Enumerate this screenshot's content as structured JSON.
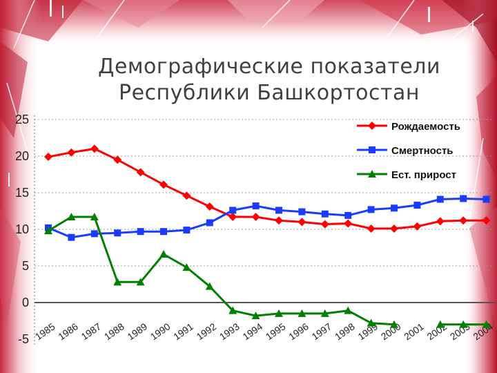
{
  "title": {
    "line1": "Демографические показатели",
    "line2": "Республики Башкортостан"
  },
  "colors": {
    "birth": "#ff0000",
    "death": "#1a3cff",
    "growth": "#008000",
    "frame_pink": "#f0a0b0",
    "frame_red": "#c0182c"
  },
  "chart_data": {
    "type": "line",
    "title": "Демографические показатели Республики Башкортостан",
    "xlabel": "",
    "ylabel": "",
    "ylim": [
      -5,
      25
    ],
    "yticks": [
      "25",
      "20",
      "15",
      "10",
      "5",
      "0",
      "-5"
    ],
    "ytick_values": [
      25,
      20,
      15,
      10,
      5,
      0,
      -5
    ],
    "categories": [
      "1985",
      "1986",
      "1987",
      "1988",
      "1989",
      "1990",
      "1991",
      "1992",
      "1993",
      "1994",
      "1995",
      "1996",
      "1997",
      "1998",
      "1999",
      "2000",
      "2001",
      "2002",
      "2003",
      "2004"
    ],
    "grid": true,
    "legend_position": "top-right",
    "series": [
      {
        "name": "Рождаемость",
        "color": "#ff0000",
        "marker": "diamond",
        "values": [
          19.9,
          20.5,
          21.0,
          19.5,
          17.8,
          16.1,
          14.6,
          13.1,
          11.7,
          11.7,
          11.2,
          11.0,
          10.7,
          10.8,
          10.1,
          10.1,
          10.4,
          11.1,
          11.2,
          11.2
        ]
      },
      {
        "name": "Смертность",
        "color": "#1a3cff",
        "marker": "square",
        "values": [
          10.2,
          8.9,
          9.4,
          9.5,
          9.7,
          9.7,
          9.9,
          10.9,
          12.6,
          13.2,
          12.6,
          12.4,
          12.1,
          11.9,
          12.7,
          12.9,
          13.3,
          14.1,
          14.2,
          14.1
        ]
      },
      {
        "name": "Ест. прирост",
        "color": "#008000",
        "marker": "triangle",
        "values": [
          9.8,
          11.7,
          11.7,
          2.8,
          2.8,
          6.6,
          4.8,
          2.2,
          -1.1,
          -1.8,
          -1.5,
          -1.5,
          -1.5,
          -1.1,
          -2.8,
          -3.0,
          null,
          -3.0,
          -3.0,
          -3.0
        ]
      }
    ]
  }
}
